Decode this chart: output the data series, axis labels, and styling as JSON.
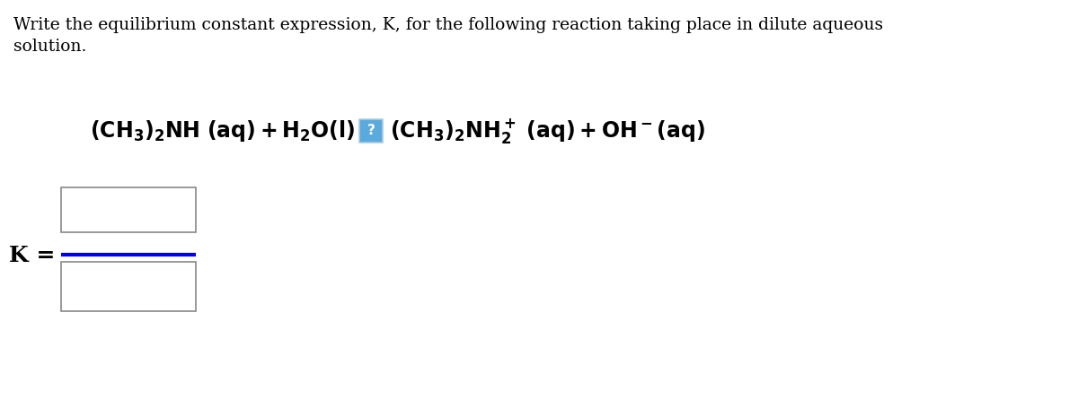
{
  "background_color": "#ffffff",
  "title_text_line1": "Write the equilibrium constant expression, K, for the following reaction taking place in dilute aqueous",
  "title_text_line2": "solution.",
  "k_label": "K =",
  "arrow_box_color": "#5aaadd",
  "arrow_box_border": "#aaccdd",
  "arrow_question": "?",
  "box_border_color": "#888888",
  "line_color": "#0000ee",
  "text_color": "#000000",
  "fontsize_body": 13.5,
  "fontsize_reaction": 17,
  "fontsize_k": 18
}
